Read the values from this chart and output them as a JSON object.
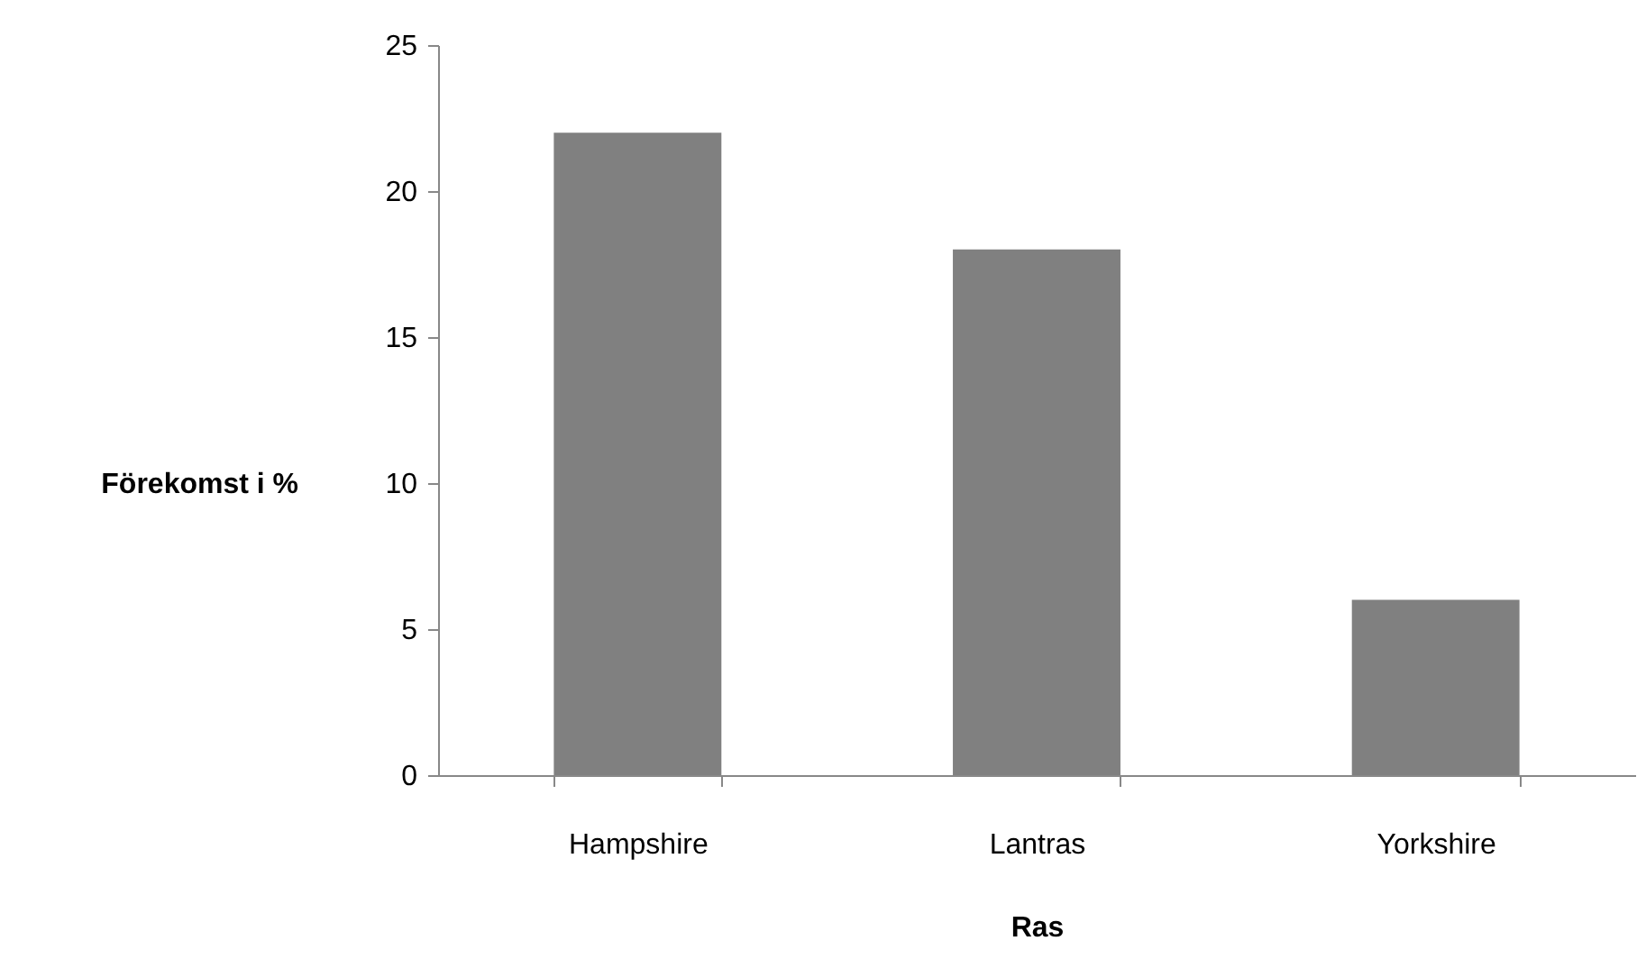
{
  "chart_data": {
    "type": "bar",
    "xlabel": "Ras",
    "ylabel": "Förekomst i %",
    "categories": [
      "Hampshire",
      "Lantras",
      "Yorkshire"
    ],
    "values": [
      22,
      18,
      6
    ],
    "color": "#808080",
    "ylim": [
      0,
      25
    ],
    "yticks": [
      0,
      5,
      10,
      15,
      20,
      25
    ],
    "grid": false
  }
}
